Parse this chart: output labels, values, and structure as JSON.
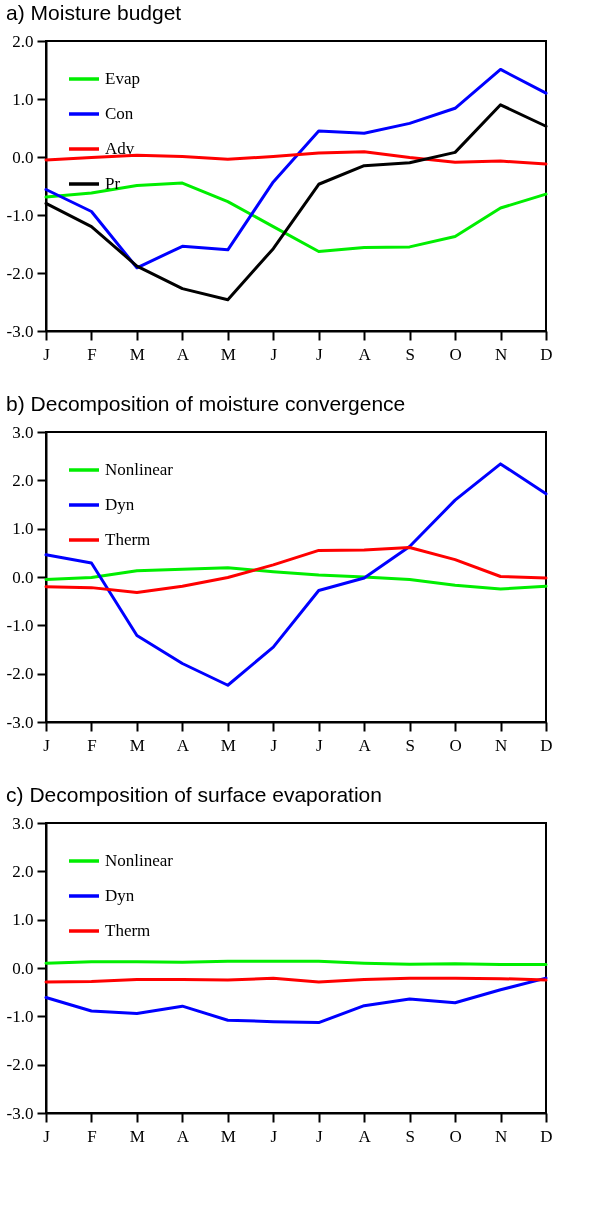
{
  "chart_data": [
    {
      "type": "line",
      "title": "a) Moisture budget",
      "categories": [
        "J",
        "F",
        "M",
        "A",
        "M",
        "J",
        "J",
        "A",
        "S",
        "O",
        "N",
        "D"
      ],
      "ylim": [
        -3.0,
        2.0
      ],
      "yticks": [
        {
          "value": -3,
          "label": "-3.0"
        },
        {
          "value": -2,
          "label": "-2.0"
        },
        {
          "value": -1,
          "label": "-1.0"
        },
        {
          "value": 0,
          "label": "0.0"
        },
        {
          "value": 1,
          "label": "1.0"
        },
        {
          "value": 2,
          "label": "2.0"
        }
      ],
      "grid": false,
      "legend": "top left",
      "series": [
        {
          "name": "Evap",
          "color": "#00ee00",
          "values": [
            -0.69,
            -0.62,
            -0.49,
            -0.45,
            -0.77,
            -1.2,
            -1.63,
            -1.56,
            -1.55,
            -1.37,
            -0.88,
            -0.64
          ]
        },
        {
          "name": "Con",
          "color": "#0000ff",
          "values": [
            -0.56,
            -0.94,
            -1.91,
            -1.54,
            -1.6,
            -0.43,
            0.45,
            0.41,
            0.58,
            0.84,
            1.51,
            1.1
          ]
        },
        {
          "name": "Adv",
          "color": "#ff0000",
          "values": [
            -0.05,
            -0.01,
            0.03,
            0.01,
            -0.04,
            0.01,
            0.07,
            0.09,
            -0.01,
            -0.09,
            -0.07,
            -0.12
          ]
        },
        {
          "name": "Pr",
          "color": "#000000",
          "values": [
            -0.8,
            -1.2,
            -1.88,
            -2.27,
            -2.46,
            -1.58,
            -0.47,
            -0.15,
            -0.1,
            0.08,
            0.9,
            0.53
          ]
        }
      ]
    },
    {
      "type": "line",
      "title": "b) Decomposition of moisture convergence",
      "categories": [
        "J",
        "F",
        "M",
        "A",
        "M",
        "J",
        "J",
        "A",
        "S",
        "O",
        "N",
        "D"
      ],
      "ylim": [
        -3.0,
        3.0
      ],
      "yticks": [
        {
          "value": -3,
          "label": "-3.0"
        },
        {
          "value": -2,
          "label": "-2.0"
        },
        {
          "value": -1,
          "label": "-1.0"
        },
        {
          "value": 0,
          "label": "0.0"
        },
        {
          "value": 1,
          "label": "1.0"
        },
        {
          "value": 2,
          "label": "2.0"
        },
        {
          "value": 3,
          "label": "3.0"
        }
      ],
      "grid": false,
      "legend": "top left",
      "series": [
        {
          "name": "Nonlinear",
          "color": "#00ee00",
          "values": [
            -0.05,
            -0.01,
            0.13,
            0.16,
            0.19,
            0.11,
            0.04,
            0.0,
            -0.05,
            -0.17,
            -0.25,
            -0.19
          ]
        },
        {
          "name": "Dyn",
          "color": "#0000ff",
          "values": [
            0.46,
            0.29,
            -1.21,
            -1.79,
            -2.24,
            -1.45,
            -0.28,
            -0.02,
            0.63,
            1.59,
            2.34,
            1.72
          ]
        },
        {
          "name": "Therm",
          "color": "#ff0000",
          "values": [
            -0.2,
            -0.22,
            -0.32,
            -0.19,
            -0.01,
            0.25,
            0.55,
            0.56,
            0.61,
            0.36,
            0.01,
            -0.02
          ]
        }
      ]
    },
    {
      "type": "line",
      "title": "c) Decomposition of surface evaporation",
      "categories": [
        "J",
        "F",
        "M",
        "A",
        "M",
        "J",
        "J",
        "A",
        "S",
        "O",
        "N",
        "D"
      ],
      "ylim": [
        -3.0,
        3.0
      ],
      "yticks": [
        {
          "value": -3,
          "label": "-3.0"
        },
        {
          "value": -2,
          "label": "-2.0"
        },
        {
          "value": -1,
          "label": "-1.0"
        },
        {
          "value": 0,
          "label": "0.0"
        },
        {
          "value": 1,
          "label": "1.0"
        },
        {
          "value": 2,
          "label": "2.0"
        },
        {
          "value": 3,
          "label": "3.0"
        }
      ],
      "grid": false,
      "legend": "top left",
      "series": [
        {
          "name": "Nonlinear",
          "color": "#00ee00",
          "values": [
            0.1,
            0.13,
            0.13,
            0.12,
            0.14,
            0.14,
            0.14,
            0.1,
            0.08,
            0.09,
            0.07,
            0.07
          ]
        },
        {
          "name": "Dyn",
          "color": "#0000ff",
          "values": [
            -0.61,
            -0.89,
            -0.94,
            -0.79,
            -1.08,
            -1.11,
            -1.13,
            -0.78,
            -0.64,
            -0.72,
            -0.45,
            -0.21
          ]
        },
        {
          "name": "Therm",
          "color": "#ff0000",
          "values": [
            -0.29,
            -0.28,
            -0.24,
            -0.24,
            -0.25,
            -0.21,
            -0.29,
            -0.24,
            -0.21,
            -0.21,
            -0.22,
            -0.25
          ]
        }
      ]
    }
  ]
}
